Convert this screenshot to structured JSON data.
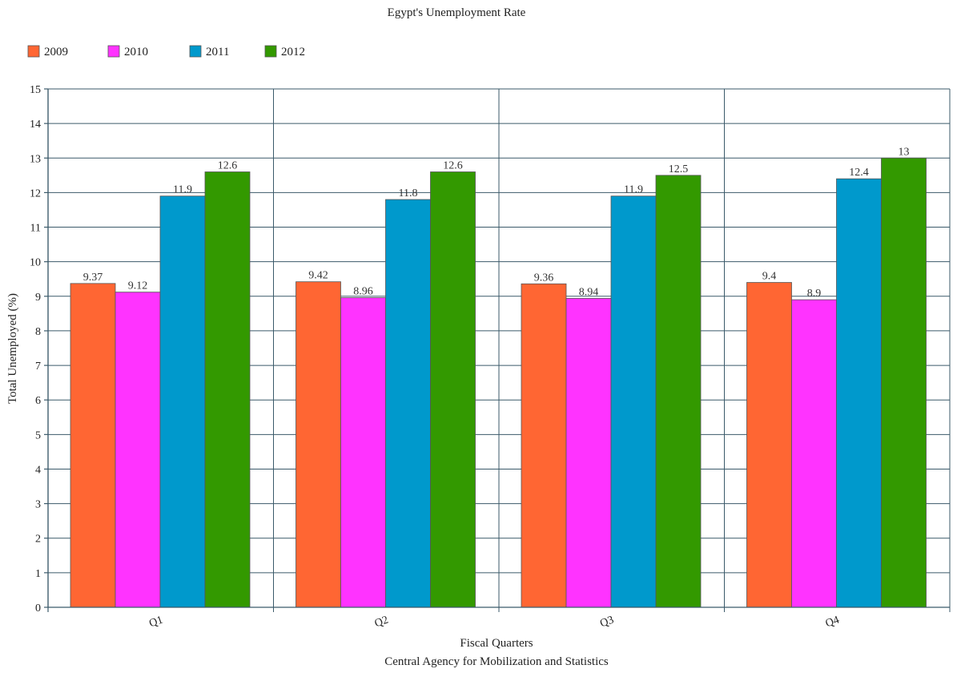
{
  "chart_data": {
    "type": "bar",
    "title": "Egypt's Unemployment Rate",
    "xlabel": "Fiscal Quarters",
    "ylabel": "Total Unemployed (%)",
    "source": "Central Agency for Mobilization and Statistics",
    "categories": [
      "Q1",
      "Q2",
      "Q3",
      "Q4"
    ],
    "ylim": [
      0,
      15
    ],
    "yticks": [
      0,
      1,
      2,
      3,
      4,
      5,
      6,
      7,
      8,
      9,
      10,
      11,
      12,
      13,
      14,
      15
    ],
    "grid": true,
    "legend_position": "top-left",
    "series": [
      {
        "name": "2009",
        "color": "#ff6633",
        "values": [
          9.37,
          9.42,
          9.36,
          9.4
        ]
      },
      {
        "name": "2010",
        "color": "#ff33ff",
        "values": [
          9.12,
          8.96,
          8.94,
          8.9
        ]
      },
      {
        "name": "2011",
        "color": "#0099cc",
        "values": [
          11.9,
          11.8,
          11.9,
          12.4
        ]
      },
      {
        "name": "2012",
        "color": "#339900",
        "values": [
          12.6,
          12.6,
          12.5,
          13
        ]
      }
    ]
  }
}
